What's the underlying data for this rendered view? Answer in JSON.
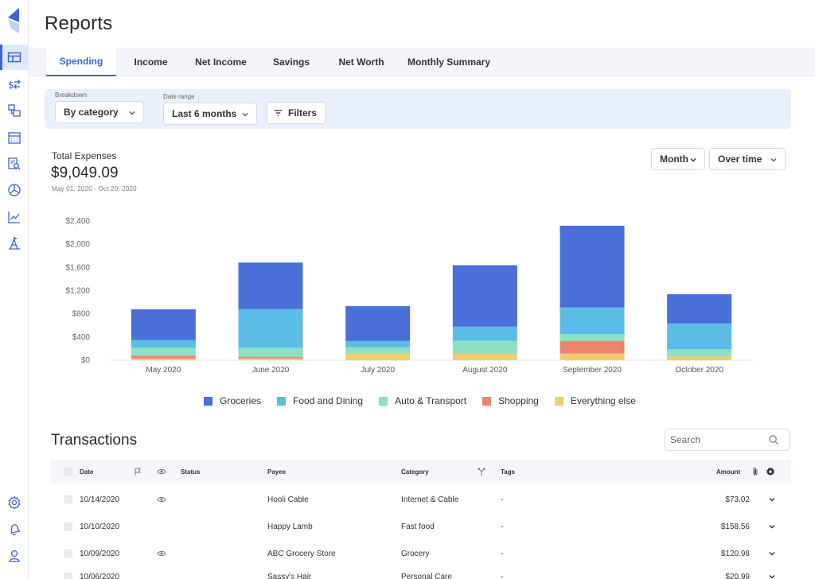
{
  "app": {
    "page_title": "Reports"
  },
  "sidebar": {
    "items": [
      {
        "name": "reports-icon",
        "active": true
      },
      {
        "name": "transactions-icon",
        "active": false
      },
      {
        "name": "accounts-icon",
        "active": false
      },
      {
        "name": "calendar-icon",
        "active": false
      },
      {
        "name": "search-report-icon",
        "active": false
      },
      {
        "name": "budget-pie-icon",
        "active": false
      },
      {
        "name": "investments-chart-icon",
        "active": false
      },
      {
        "name": "goals-icon",
        "active": false
      }
    ],
    "bottom": [
      {
        "name": "settings-gear-icon"
      },
      {
        "name": "notifications-bell-icon"
      },
      {
        "name": "profile-icon"
      }
    ]
  },
  "tabs": [
    {
      "label": "Spending",
      "active": true
    },
    {
      "label": "Income",
      "active": false
    },
    {
      "label": "Net Income",
      "active": false
    },
    {
      "label": "Savings",
      "active": false
    },
    {
      "label": "Net Worth",
      "active": false
    },
    {
      "label": "Monthly Summary",
      "active": false
    }
  ],
  "filters": {
    "breakdown_label": "Breakdown",
    "breakdown_value": "By category",
    "date_range_label": "Date range",
    "date_range_value": "Last 6 months",
    "filters_button": "Filters"
  },
  "summary": {
    "label": "Total Expenses",
    "amount": "$9,049.09",
    "range": "May 01, 2020 - Oct 20, 2020",
    "period_select": "Month",
    "view_select": "Over time"
  },
  "colors": {
    "accent": "#3c63d8",
    "groceries": "#4a6fd9",
    "food_dining": "#5bbde6",
    "auto_transport": "#8ce0c4",
    "shopping": "#ee8470",
    "everything_else": "#efce6d"
  },
  "chart_data": {
    "type": "bar",
    "stacked": true,
    "categories": [
      "May 2020",
      "June 2020",
      "July 2020",
      "August 2020",
      "September 2020",
      "October 2020"
    ],
    "y_ticks": [
      "$2,400",
      "$2,000",
      "$1,600",
      "$1,200",
      "$800",
      "$400",
      "$0"
    ],
    "ylim": [
      0,
      2400
    ],
    "series": [
      {
        "name": "Everything else",
        "color": "#efce6d",
        "values": [
          30,
          30,
          115,
          110,
          115,
          65
        ]
      },
      {
        "name": "Shopping",
        "color": "#ee8470",
        "values": [
          45,
          30,
          0,
          0,
          220,
          0
        ]
      },
      {
        "name": "Auto & Transport",
        "color": "#8ce0c4",
        "values": [
          140,
          155,
          110,
          225,
          115,
          125
        ]
      },
      {
        "name": "Food and Dining",
        "color": "#5bbde6",
        "values": [
          135,
          670,
          110,
          245,
          460,
          445
        ]
      },
      {
        "name": "Groceries",
        "color": "#4a6fd9",
        "values": [
          530,
          800,
          600,
          1060,
          1410,
          505
        ]
      }
    ]
  },
  "legend": [
    {
      "label": "Groceries",
      "color": "#4a6fd9"
    },
    {
      "label": "Food and Dining",
      "color": "#5bbde6"
    },
    {
      "label": "Auto & Transport",
      "color": "#8ce0c4"
    },
    {
      "label": "Shopping",
      "color": "#ee8470"
    },
    {
      "label": "Everything else",
      "color": "#efce6d"
    }
  ],
  "transactions": {
    "title": "Transactions",
    "search_placeholder": "Search",
    "columns": {
      "date": "Date",
      "status": "Status",
      "payee": "Payee",
      "category": "Category",
      "tags": "Tags",
      "amount": "Amount"
    },
    "rows": [
      {
        "date": "10/14/2020",
        "viewed": true,
        "payee": "Hooli Cable",
        "category": "Internet & Cable",
        "tags": "-",
        "amount": "$73.02"
      },
      {
        "date": "10/10/2020",
        "viewed": false,
        "payee": "Happy Lamb",
        "category": "Fast food",
        "tags": "-",
        "amount": "$158.56"
      },
      {
        "date": "10/09/2020",
        "viewed": true,
        "payee": "ABC Grocery Store",
        "category": "Grocery",
        "tags": "-",
        "amount": "$120.98"
      },
      {
        "date": "10/06/2020",
        "viewed": false,
        "payee": "Sassy's Hair",
        "category": "Personal Care",
        "tags": "-",
        "amount": "$20.99"
      }
    ]
  }
}
